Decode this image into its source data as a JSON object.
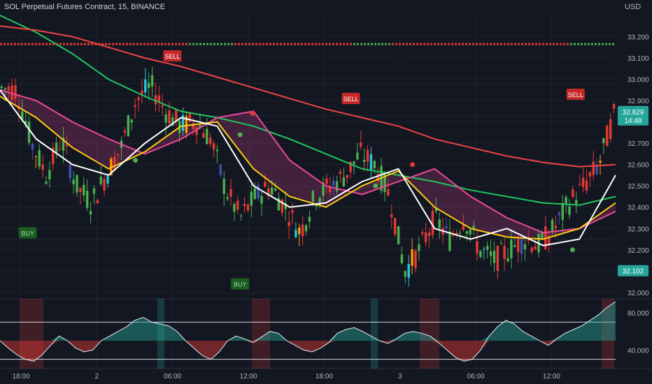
{
  "header": {
    "symbol_line": "SOL Perpetual Futures Contract, 15, BINANCE",
    "currency": "USD"
  },
  "colors": {
    "background": "#131722",
    "bull": "#4caf50",
    "bear": "#e53935",
    "blue": "#3f51b5",
    "cyan": "#26c6da",
    "orange": "#ff9800",
    "ema_green": "#22c55e",
    "ema_red": "#ef4444",
    "ema_pink": "#ec4899",
    "ema_yellow": "#facc15",
    "ema_white": "#ffffff"
  },
  "chart_data": [
    {
      "type": "candlestick",
      "ylim": [
        31.97,
        33.3
      ],
      "y_ticks": [
        "33.200",
        "33.100",
        "33.000",
        "32.900",
        "32.800",
        "32.700",
        "32.600",
        "32.500",
        "32.400",
        "32.300",
        "32.200",
        "32.100",
        "32.000"
      ],
      "x_ticks": [
        "18:00",
        "2",
        "06:00",
        "12:00",
        "18:00",
        "3",
        "06:00",
        "12:00"
      ],
      "last_price": "32.829",
      "countdown": "14:48",
      "marker_price": "32.102",
      "price_path": [
        32.96,
        32.95,
        32.7,
        32.55,
        32.72,
        32.5,
        32.42,
        32.55,
        32.68,
        32.9,
        32.97,
        32.85,
        32.78,
        32.8,
        32.72,
        32.48,
        32.35,
        32.45,
        32.5,
        32.4,
        32.28,
        32.45,
        32.5,
        32.55,
        32.65,
        32.6,
        32.45,
        32.1,
        32.2,
        32.35,
        32.25,
        32.35,
        32.2,
        32.15,
        32.2,
        32.25,
        32.22,
        32.3,
        32.42,
        32.5,
        32.6,
        32.83
      ],
      "series": [
        {
          "name": "",
          "color": "#22c55e",
          "values": [
            33.3,
            33.22,
            33.12,
            33.0,
            32.92,
            32.85,
            32.82,
            32.78,
            32.72,
            32.65,
            32.58,
            32.55,
            32.52,
            32.48,
            32.45,
            32.42,
            32.41,
            32.45
          ]
        },
        {
          "name": "",
          "color": "#ef4444",
          "values": [
            33.25,
            33.23,
            33.2,
            33.15,
            33.1,
            33.06,
            33.01,
            32.96,
            32.91,
            32.86,
            32.82,
            32.78,
            32.72,
            32.68,
            32.64,
            32.61,
            32.59,
            32.6
          ]
        },
        {
          "name": "",
          "color": "#ec4899",
          "values": [
            32.95,
            32.9,
            32.8,
            32.72,
            32.65,
            32.72,
            32.82,
            32.85,
            32.62,
            32.5,
            32.46,
            32.52,
            32.58,
            32.45,
            32.35,
            32.28,
            32.3,
            32.38
          ]
        },
        {
          "name": "",
          "color": "#facc15",
          "values": [
            32.92,
            32.82,
            32.68,
            32.58,
            32.66,
            32.78,
            32.8,
            32.58,
            32.45,
            32.4,
            32.5,
            32.57,
            32.4,
            32.3,
            32.26,
            32.25,
            32.3,
            32.42
          ]
        },
        {
          "name": "",
          "color": "#ffffff",
          "values": [
            32.95,
            32.72,
            32.6,
            32.55,
            32.7,
            32.82,
            32.78,
            32.5,
            32.4,
            32.42,
            32.52,
            32.58,
            32.3,
            32.25,
            32.3,
            32.22,
            32.25,
            32.55
          ]
        }
      ],
      "signals": [
        {
          "label": "SELL",
          "price": 33.11,
          "kind": "sell",
          "pos": 0.28
        },
        {
          "label": "SELL",
          "price": 32.91,
          "kind": "sell",
          "pos": 0.57
        },
        {
          "label": "SELL",
          "price": 32.93,
          "kind": "sell",
          "pos": 0.935
        },
        {
          "label": "BUY",
          "price": 32.28,
          "kind": "buy",
          "pos": 0.045
        },
        {
          "label": "BUY",
          "price": 32.04,
          "kind": "buy",
          "pos": 0.39
        }
      ]
    },
    {
      "type": "oscillator",
      "y_ticks": [
        "80.000",
        "40.000"
      ],
      "ylim": [
        20,
        95
      ],
      "levels": [
        70,
        30
      ],
      "values": [
        50,
        42,
        35,
        30,
        28,
        35,
        45,
        55,
        50,
        42,
        38,
        40,
        50,
        55,
        60,
        65,
        72,
        75,
        70,
        68,
        66,
        60,
        50,
        42,
        34,
        30,
        38,
        50,
        55,
        52,
        48,
        54,
        60,
        58,
        50,
        45,
        40,
        38,
        42,
        48,
        58,
        62,
        64,
        60,
        55,
        50,
        47,
        52,
        58,
        60,
        58,
        55,
        48,
        40,
        32,
        28,
        30,
        40,
        55,
        65,
        72,
        68,
        60,
        55,
        50,
        45,
        52,
        58,
        62,
        66,
        72,
        78,
        86,
        92
      ]
    }
  ]
}
